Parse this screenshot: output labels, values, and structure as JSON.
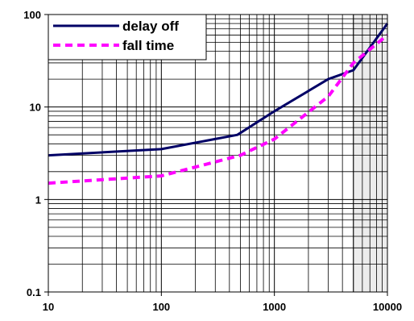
{
  "chart_data": {
    "type": "line",
    "title": "",
    "xlabel": "",
    "ylabel": "",
    "x_scale": "log",
    "y_scale": "log",
    "xlim": [
      10,
      10000
    ],
    "ylim": [
      0.1,
      100
    ],
    "grid": true,
    "legend_position": "top-left",
    "x_tick_labels": [
      "10",
      "100",
      "1000",
      "10000"
    ],
    "y_tick_labels": [
      "0.1",
      "1",
      "10",
      "100"
    ],
    "highlight_band": {
      "x_from": 5000,
      "x_to": 10000,
      "color": "#ececec"
    },
    "series": [
      {
        "name": "delay off",
        "color": "#000066",
        "style": "solid",
        "points": [
          [
            10,
            3
          ],
          [
            100,
            3.5
          ],
          [
            470,
            5
          ],
          [
            1000,
            9
          ],
          [
            3000,
            20
          ],
          [
            5000,
            25
          ],
          [
            10000,
            80
          ]
        ]
      },
      {
        "name": "fall time",
        "color": "#ff00ff",
        "style": "dashed",
        "points": [
          [
            10,
            1.5
          ],
          [
            100,
            1.8
          ],
          [
            500,
            3
          ],
          [
            1000,
            4.5
          ],
          [
            3000,
            13
          ],
          [
            5000,
            30
          ],
          [
            10000,
            60
          ]
        ]
      }
    ]
  }
}
